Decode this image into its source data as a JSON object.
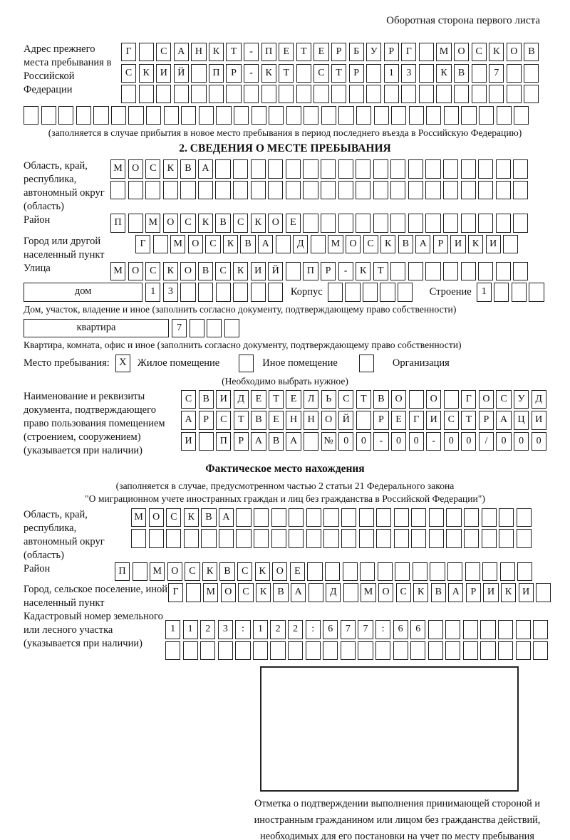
{
  "page": {
    "top_note": "Оборотная сторона первого листа"
  },
  "prev_address": {
    "label": "Адрес прежнего места пребывания в Российской Федерации",
    "rows": [
      {
        "text": "Г САНКТ-ПЕТЕРБУРГ МОСКОВ",
        "total": 24
      },
      {
        "text": "СКИЙ ПР-КТ СТР 13 КВ 7",
        "total": 24
      },
      {
        "text": "",
        "total": 24
      }
    ],
    "overflow_row": {
      "text": "",
      "total": 29
    },
    "note": "(заполняется в случае прибытия в новое место пребывания в период последнего въезда в Российскую Федерацию)"
  },
  "section2": {
    "title": "2. СВЕДЕНИЯ О МЕСТЕ ПРЕБЫВАНИЯ",
    "region": {
      "label": "Область, край, республика, автономный округ (область)",
      "rows": [
        {
          "text": "МОСКВА",
          "total": 24
        },
        {
          "text": "",
          "total": 24
        }
      ]
    },
    "district": {
      "label": "Район",
      "rows": [
        {
          "text": "П МОСКВСКОЕ",
          "total": 24
        }
      ]
    },
    "city": {
      "label": "Город или другой населенный пункт",
      "rows": [
        {
          "text": "Г МОСКВА Д МОСКВАРИКИ",
          "total": 22
        }
      ]
    },
    "street": {
      "label": "Улица",
      "rows": [
        {
          "text": "МОСКОВСКИЙ ПР-КТ",
          "total": 24
        }
      ]
    },
    "house": {
      "box_label": "дом",
      "cells": {
        "text": "13",
        "total": 8
      },
      "korpus_label": "Корпус",
      "korpus_cells": {
        "text": "",
        "total": 5
      },
      "stroenie_label": "Строение",
      "stroenie_cells": {
        "text": "1",
        "total": 4
      },
      "note": "Дом, участок, владение и иное (заполнить согласно документу, подтверждающему право собственности)"
    },
    "apartment": {
      "box_label": "квартира",
      "cells": {
        "text": "7",
        "total": 4
      },
      "note": "Квартира, комната, офис и иное (заполнить согласно документу, подтверждающему право собственности)"
    },
    "stay_type": {
      "label": "Место пребывания:",
      "options": [
        {
          "label": "Жилое помещение",
          "mark": "X"
        },
        {
          "label": "Иное помещение",
          "mark": ""
        },
        {
          "label": "Организация",
          "mark": ""
        }
      ],
      "note": "(Необходимо выбрать нужное)"
    },
    "document": {
      "label": "Наименование и реквизиты документа, подтверждающего право пользования помещением (строением, сооружением) (указывается при наличии)",
      "rows": [
        {
          "text": "СВИДЕТЕЛЬСТВО О ГОСУД",
          "total": 21
        },
        {
          "text": "АРСТВЕННОЙ РЕГИСТРАЦИ",
          "total": 21
        },
        {
          "text": "И ПРАВА №00-00-00/000",
          "total": 21
        }
      ]
    }
  },
  "actual_location": {
    "title": "Фактическое место нахождения",
    "note_line1": "(заполняется в случае, предусмотренном частью 2 статьи 21 Федерального закона",
    "note_line2": "\"О миграционном учете иностранных граждан и лиц без гражданства в Российской Федерации\")",
    "region": {
      "label": "Область, край, республика, автономный округ (область)",
      "rows": [
        {
          "text": "МОСКВА",
          "total": 23
        },
        {
          "text": "",
          "total": 23
        }
      ]
    },
    "district": {
      "label": "Район",
      "rows": [
        {
          "text": "П МОСКВСКОЕ",
          "total": 24
        }
      ]
    },
    "city": {
      "label": "Город, сельское поселение, иной населенный пункт",
      "rows": [
        {
          "text": "Г МОСКВА Д МОСКВАРИКИ",
          "total": 22
        }
      ]
    },
    "cadastral": {
      "label": "Кадастровый номер земельного или лесного участка (указывается при наличии)",
      "rows": [
        {
          "text": "1123:122:677:66",
          "total": 22
        },
        {
          "text": "",
          "total": 22
        }
      ]
    },
    "stamp_note": "Отметка о подтверждении выполнения принимающей стороной и иностранным гражданином или лицом без гражданства действий, необходимых для его постановки на учет по месту пребывания"
  }
}
